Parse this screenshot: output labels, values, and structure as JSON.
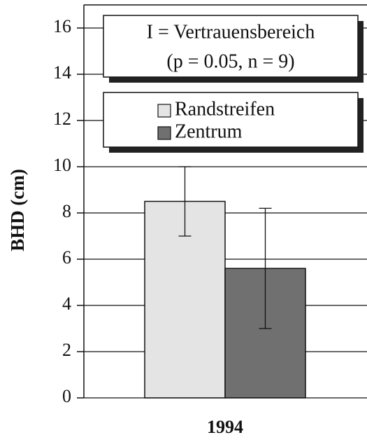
{
  "chart_data": {
    "type": "bar",
    "y_label": "BHD (cm)",
    "annotation": [
      "I = Vertrauensbereich",
      "(p = 0.05, n = 9)"
    ],
    "categories": [
      "1994"
    ],
    "series": [
      {
        "name": "Randstreifen",
        "color": "#e4e4e4",
        "values": [
          8.5
        ],
        "errors": [
          1.5
        ]
      },
      {
        "name": "Zentrum",
        "color": "#707070",
        "values": [
          5.6
        ],
        "errors": [
          2.6
        ]
      }
    ],
    "ylim": [
      0,
      17
    ],
    "yticks": [
      0,
      2,
      4,
      6,
      8,
      10,
      12,
      14,
      16
    ],
    "grid": true
  }
}
